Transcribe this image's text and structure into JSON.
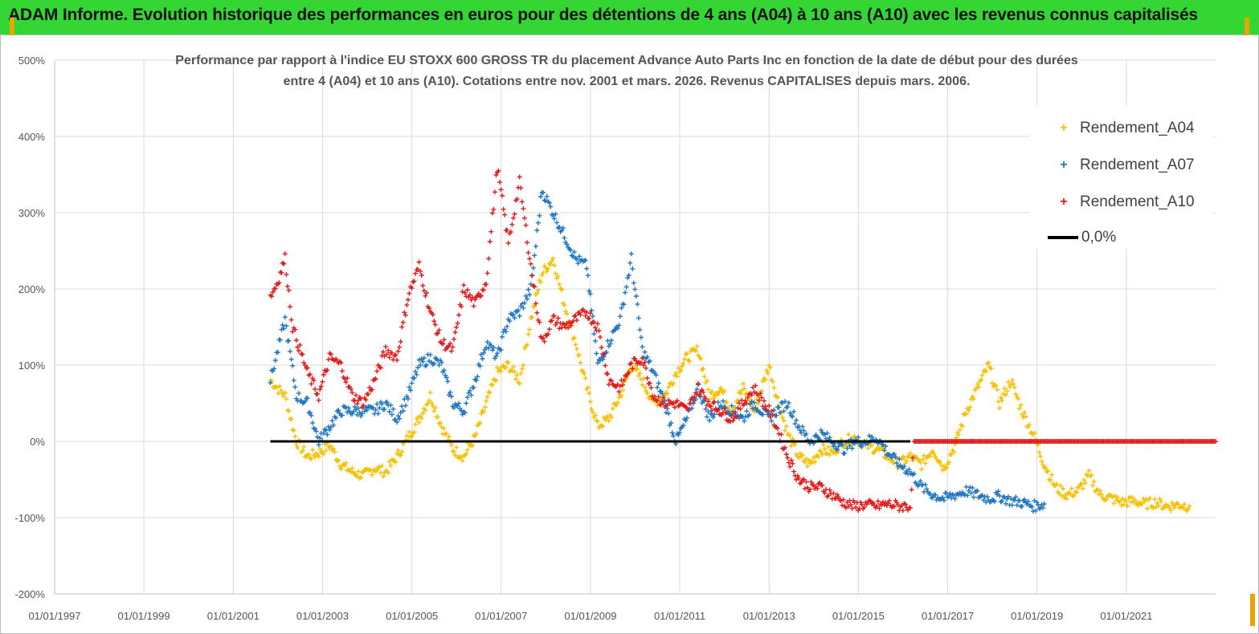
{
  "banner": {
    "title": "ADAM Informe. Evolution historique des performances en euros pour des détentions de 4 ans (A04) à 10 ans (A10) avec les revenus connus capitalisés"
  },
  "colors": {
    "banner_bg": "#33d633",
    "A04": "#f5c000",
    "A07": "#1f77c4",
    "A10": "#e41a1a",
    "zero_line": "#000000",
    "grid": "#d9d9d9"
  },
  "chart_data": {
    "type": "scatter",
    "title_line1": "Performance par rapport à l'indice EU STOXX 600 GROSS TR  du placement Advance Auto Parts Inc en fonction de la date de début pour des durées",
    "title_line2": "entre 4 (A04) et 10 ans (A10). Cotations entre nov. 2001 et mars. 2026. Revenus CAPITALISES depuis mars. 2006.",
    "xlabel": "",
    "ylabel": "",
    "x_ticks": [
      "01/01/1997",
      "01/01/1999",
      "01/01/2001",
      "01/01/2003",
      "01/01/2005",
      "01/01/2007",
      "01/01/2009",
      "01/01/2011",
      "01/01/2013",
      "01/01/2015",
      "01/01/2017",
      "01/01/2019",
      "01/01/2021"
    ],
    "y_ticks": [
      "500%",
      "400%",
      "300%",
      "200%",
      "100%",
      "0%",
      "-100%",
      "-200%"
    ],
    "xlim": [
      "1997-01-01",
      "2023-01-01"
    ],
    "ylim": [
      -200,
      500
    ],
    "grid": "vertical and horizontal",
    "legend_position": "top-right",
    "marker": "+",
    "series": [
      {
        "name": "Rendement_A04",
        "color": "#f5c000",
        "points": [
          [
            "2001-11-01",
            80
          ],
          [
            "2002-03-01",
            60
          ],
          [
            "2002-06-01",
            0
          ],
          [
            "2002-09-01",
            -20
          ],
          [
            "2002-12-01",
            -15
          ],
          [
            "2003-03-01",
            -5
          ],
          [
            "2003-06-01",
            -30
          ],
          [
            "2003-09-01",
            -40
          ],
          [
            "2003-12-01",
            -45
          ],
          [
            "2004-03-01",
            -35
          ],
          [
            "2004-06-01",
            -40
          ],
          [
            "2004-09-01",
            -20
          ],
          [
            "2004-12-01",
            5
          ],
          [
            "2005-03-01",
            30
          ],
          [
            "2005-06-01",
            60
          ],
          [
            "2005-09-01",
            20
          ],
          [
            "2005-12-01",
            -10
          ],
          [
            "2006-03-01",
            -20
          ],
          [
            "2006-06-01",
            5
          ],
          [
            "2006-09-01",
            50
          ],
          [
            "2006-12-01",
            90
          ],
          [
            "2007-03-01",
            100
          ],
          [
            "2007-06-01",
            80
          ],
          [
            "2007-09-01",
            160
          ],
          [
            "2007-12-01",
            220
          ],
          [
            "2008-03-01",
            240
          ],
          [
            "2008-06-01",
            180
          ],
          [
            "2008-09-01",
            130
          ],
          [
            "2008-12-01",
            70
          ],
          [
            "2009-03-01",
            20
          ],
          [
            "2009-06-01",
            30
          ],
          [
            "2009-09-01",
            60
          ],
          [
            "2009-12-01",
            100
          ],
          [
            "2010-03-01",
            80
          ],
          [
            "2010-06-01",
            50
          ],
          [
            "2010-09-01",
            60
          ],
          [
            "2010-12-01",
            90
          ],
          [
            "2011-03-01",
            110
          ],
          [
            "2011-06-01",
            120
          ],
          [
            "2011-09-01",
            60
          ],
          [
            "2011-12-01",
            70
          ],
          [
            "2012-03-01",
            40
          ],
          [
            "2012-06-01",
            70
          ],
          [
            "2012-09-01",
            40
          ],
          [
            "2013-01-01",
            100
          ],
          [
            "2013-03-01",
            60
          ],
          [
            "2013-06-01",
            10
          ],
          [
            "2013-09-01",
            -20
          ],
          [
            "2013-12-01",
            -30
          ],
          [
            "2014-03-01",
            -10
          ],
          [
            "2014-06-01",
            -15
          ],
          [
            "2014-09-01",
            0
          ],
          [
            "2014-12-01",
            5
          ],
          [
            "2015-03-01",
            -5
          ],
          [
            "2015-06-01",
            -10
          ],
          [
            "2015-09-01",
            -20
          ],
          [
            "2015-12-01",
            -30
          ],
          [
            "2016-03-01",
            -20
          ],
          [
            "2016-06-01",
            -30
          ],
          [
            "2016-09-01",
            -10
          ],
          [
            "2016-12-01",
            -35
          ],
          [
            "2017-03-01",
            -5
          ],
          [
            "2017-06-01",
            40
          ],
          [
            "2017-09-01",
            70
          ],
          [
            "2017-12-01",
            100
          ],
          [
            "2018-03-01",
            50
          ],
          [
            "2018-06-01",
            80
          ],
          [
            "2018-09-01",
            40
          ],
          [
            "2018-12-01",
            10
          ],
          [
            "2019-03-01",
            -30
          ],
          [
            "2019-06-01",
            -60
          ],
          [
            "2019-09-01",
            -70
          ],
          [
            "2019-12-01",
            -65
          ],
          [
            "2020-03-01",
            -45
          ],
          [
            "2020-06-01",
            -70
          ],
          [
            "2020-09-01",
            -75
          ],
          [
            "2020-12-01",
            -80
          ],
          [
            "2021-03-01",
            -78
          ],
          [
            "2021-06-01",
            -82
          ],
          [
            "2021-09-01",
            -80
          ],
          [
            "2021-12-01",
            -85
          ],
          [
            "2022-03-01",
            -83
          ],
          [
            "2022-06-01",
            -85
          ]
        ]
      },
      {
        "name": "Rendement_A07",
        "color": "#1f77c4",
        "points": [
          [
            "2001-11-01",
            80
          ],
          [
            "2002-01-01",
            120
          ],
          [
            "2002-03-01",
            160
          ],
          [
            "2002-06-01",
            60
          ],
          [
            "2002-09-01",
            50
          ],
          [
            "2002-12-01",
            0
          ],
          [
            "2003-03-01",
            20
          ],
          [
            "2003-06-01",
            40
          ],
          [
            "2003-09-01",
            40
          ],
          [
            "2003-12-01",
            40
          ],
          [
            "2004-03-01",
            40
          ],
          [
            "2004-06-01",
            50
          ],
          [
            "2004-09-01",
            30
          ],
          [
            "2004-12-01",
            60
          ],
          [
            "2005-03-01",
            100
          ],
          [
            "2005-06-01",
            110
          ],
          [
            "2005-09-01",
            100
          ],
          [
            "2005-12-01",
            50
          ],
          [
            "2006-03-01",
            40
          ],
          [
            "2006-06-01",
            80
          ],
          [
            "2006-09-01",
            130
          ],
          [
            "2006-12-01",
            110
          ],
          [
            "2007-03-01",
            160
          ],
          [
            "2007-06-01",
            170
          ],
          [
            "2007-09-01",
            200
          ],
          [
            "2007-12-01",
            330
          ],
          [
            "2008-03-01",
            300
          ],
          [
            "2008-06-01",
            270
          ],
          [
            "2008-09-01",
            240
          ],
          [
            "2008-12-01",
            230
          ],
          [
            "2009-03-01",
            100
          ],
          [
            "2009-06-01",
            130
          ],
          [
            "2009-09-01",
            160
          ],
          [
            "2009-12-01",
            240
          ],
          [
            "2010-03-01",
            120
          ],
          [
            "2010-06-01",
            90
          ],
          [
            "2010-09-01",
            50
          ],
          [
            "2010-12-01",
            0
          ],
          [
            "2011-03-01",
            30
          ],
          [
            "2011-06-01",
            70
          ],
          [
            "2011-09-01",
            30
          ],
          [
            "2011-12-01",
            50
          ],
          [
            "2012-03-01",
            40
          ],
          [
            "2012-06-01",
            30
          ],
          [
            "2012-09-01",
            50
          ],
          [
            "2013-01-01",
            30
          ],
          [
            "2013-03-01",
            40
          ],
          [
            "2013-06-01",
            50
          ],
          [
            "2013-09-01",
            20
          ],
          [
            "2013-12-01",
            0
          ],
          [
            "2014-03-01",
            10
          ],
          [
            "2014-06-01",
            0
          ],
          [
            "2014-09-01",
            -10
          ],
          [
            "2014-12-01",
            0
          ],
          [
            "2015-03-01",
            0
          ],
          [
            "2015-06-01",
            5
          ],
          [
            "2015-09-01",
            -15
          ],
          [
            "2015-12-01",
            -30
          ],
          [
            "2016-03-01",
            -40
          ],
          [
            "2016-06-01",
            -60
          ],
          [
            "2016-09-01",
            -70
          ],
          [
            "2016-12-01",
            -75
          ],
          [
            "2017-03-01",
            -70
          ],
          [
            "2017-06-01",
            -65
          ],
          [
            "2017-09-01",
            -70
          ],
          [
            "2017-12-01",
            -75
          ],
          [
            "2018-03-01",
            -72
          ],
          [
            "2018-06-01",
            -78
          ],
          [
            "2018-09-01",
            -80
          ],
          [
            "2018-12-01",
            -85
          ],
          [
            "2019-03-01",
            -82
          ]
        ]
      },
      {
        "name": "Rendement_A10",
        "color": "#e41a1a",
        "points": [
          [
            "2001-11-01",
            190
          ],
          [
            "2002-01-01",
            210
          ],
          [
            "2002-03-01",
            240
          ],
          [
            "2002-05-01",
            150
          ],
          [
            "2002-07-01",
            120
          ],
          [
            "2002-09-01",
            90
          ],
          [
            "2002-12-01",
            60
          ],
          [
            "2003-03-01",
            110
          ],
          [
            "2003-06-01",
            100
          ],
          [
            "2003-09-01",
            60
          ],
          [
            "2003-12-01",
            50
          ],
          [
            "2004-03-01",
            80
          ],
          [
            "2004-06-01",
            120
          ],
          [
            "2004-09-01",
            110
          ],
          [
            "2004-12-01",
            190
          ],
          [
            "2005-03-01",
            230
          ],
          [
            "2005-06-01",
            170
          ],
          [
            "2005-09-01",
            130
          ],
          [
            "2005-12-01",
            120
          ],
          [
            "2006-03-01",
            200
          ],
          [
            "2006-06-01",
            180
          ],
          [
            "2006-09-01",
            210
          ],
          [
            "2006-12-01",
            360
          ],
          [
            "2007-03-01",
            260
          ],
          [
            "2007-06-01",
            340
          ],
          [
            "2007-09-01",
            230
          ],
          [
            "2007-12-01",
            130
          ],
          [
            "2008-03-01",
            160
          ],
          [
            "2008-06-01",
            150
          ],
          [
            "2008-09-01",
            160
          ],
          [
            "2008-12-01",
            170
          ],
          [
            "2009-03-01",
            150
          ],
          [
            "2009-06-01",
            80
          ],
          [
            "2009-09-01",
            70
          ],
          [
            "2009-12-01",
            100
          ],
          [
            "2010-03-01",
            110
          ],
          [
            "2010-06-01",
            60
          ],
          [
            "2010-09-01",
            50
          ],
          [
            "2010-12-01",
            50
          ],
          [
            "2011-03-01",
            40
          ],
          [
            "2011-06-01",
            70
          ],
          [
            "2011-09-01",
            50
          ],
          [
            "2011-12-01",
            40
          ],
          [
            "2012-03-01",
            30
          ],
          [
            "2012-06-01",
            50
          ],
          [
            "2012-09-01",
            70
          ],
          [
            "2013-01-01",
            40
          ],
          [
            "2013-03-01",
            20
          ],
          [
            "2013-06-01",
            -20
          ],
          [
            "2013-09-01",
            -50
          ],
          [
            "2013-12-01",
            -60
          ],
          [
            "2014-03-01",
            -60
          ],
          [
            "2014-06-01",
            -70
          ],
          [
            "2014-09-01",
            -80
          ],
          [
            "2014-12-01",
            -85
          ],
          [
            "2015-03-01",
            -83
          ],
          [
            "2015-06-01",
            -85
          ],
          [
            "2015-09-01",
            -82
          ],
          [
            "2015-12-01",
            -85
          ],
          [
            "2016-03-01",
            -85
          ],
          [
            "2016-04-01",
            0
          ],
          [
            "2017-01-01",
            0
          ],
          [
            "2018-01-01",
            0
          ],
          [
            "2019-01-01",
            0
          ],
          [
            "2020-01-01",
            0
          ],
          [
            "2021-01-01",
            0
          ],
          [
            "2022-01-01",
            0
          ],
          [
            "2023-01-01",
            0
          ]
        ]
      },
      {
        "name": "0,0%",
        "color": "#000000",
        "type": "line",
        "points": [
          [
            "2001-11-01",
            0
          ],
          [
            "2016-03-01",
            0
          ]
        ]
      }
    ]
  }
}
